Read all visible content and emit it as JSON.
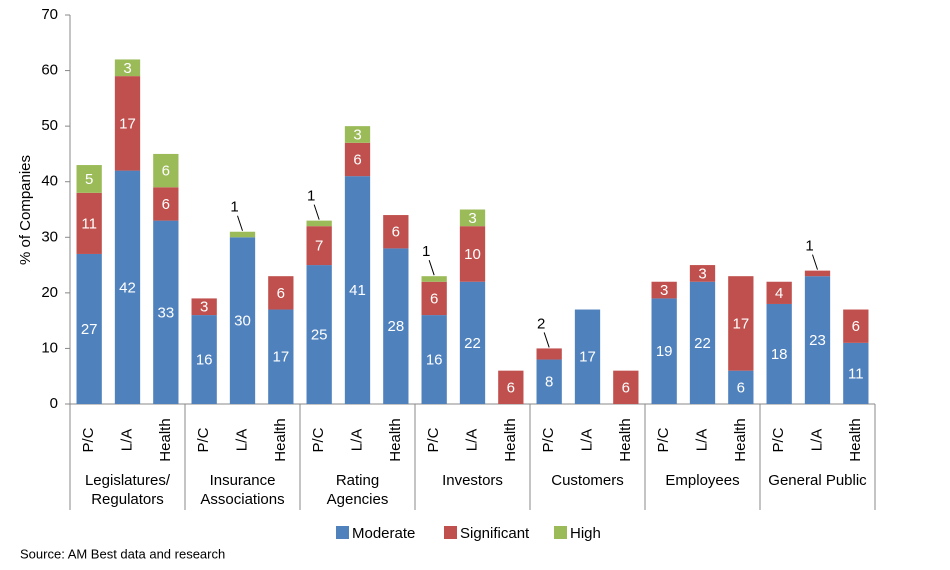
{
  "chart_data": {
    "type": "stacked-bar",
    "y_label": "% of Companies",
    "categories": [
      "P/C",
      "L/A",
      "Health",
      "P/C",
      "L/A",
      "Health",
      "P/C",
      "L/A",
      "Health",
      "P/C",
      "L/A",
      "Health",
      "P/C",
      "L/A",
      "Health",
      "P/C",
      "L/A",
      "Health",
      "P/C",
      "L/A",
      "Health"
    ],
    "groups": [
      [
        "Legislatures/",
        "Regulators"
      ],
      [
        "Insurance",
        "Associations"
      ],
      [
        "Rating",
        "Agencies"
      ],
      [
        "Investors"
      ],
      [
        "Customers"
      ],
      [
        "Employees"
      ],
      [
        "General Public"
      ]
    ],
    "series": [
      {
        "name": "Moderate",
        "color": "#4f81bd",
        "values": [
          27,
          42,
          33,
          16,
          30,
          17,
          25,
          41,
          28,
          16,
          22,
          null,
          8,
          17,
          null,
          19,
          22,
          6,
          18,
          23,
          11
        ]
      },
      {
        "name": "Significant",
        "color": "#c0504d",
        "values": [
          11,
          17,
          6,
          3,
          null,
          6,
          7,
          6,
          6,
          6,
          10,
          6,
          2,
          null,
          6,
          3,
          3,
          17,
          4,
          1,
          6
        ]
      },
      {
        "name": "High",
        "color": "#9bbb59",
        "values": [
          5,
          3,
          6,
          null,
          1,
          null,
          1,
          3,
          null,
          1,
          3,
          null,
          null,
          null,
          null,
          null,
          null,
          null,
          null,
          null,
          null
        ]
      }
    ],
    "ylim": [
      0,
      70
    ],
    "yticks": [
      0,
      10,
      20,
      30,
      40,
      50,
      60,
      70
    ],
    "legend": "bottom",
    "source": "Source: AM Best data and research"
  }
}
